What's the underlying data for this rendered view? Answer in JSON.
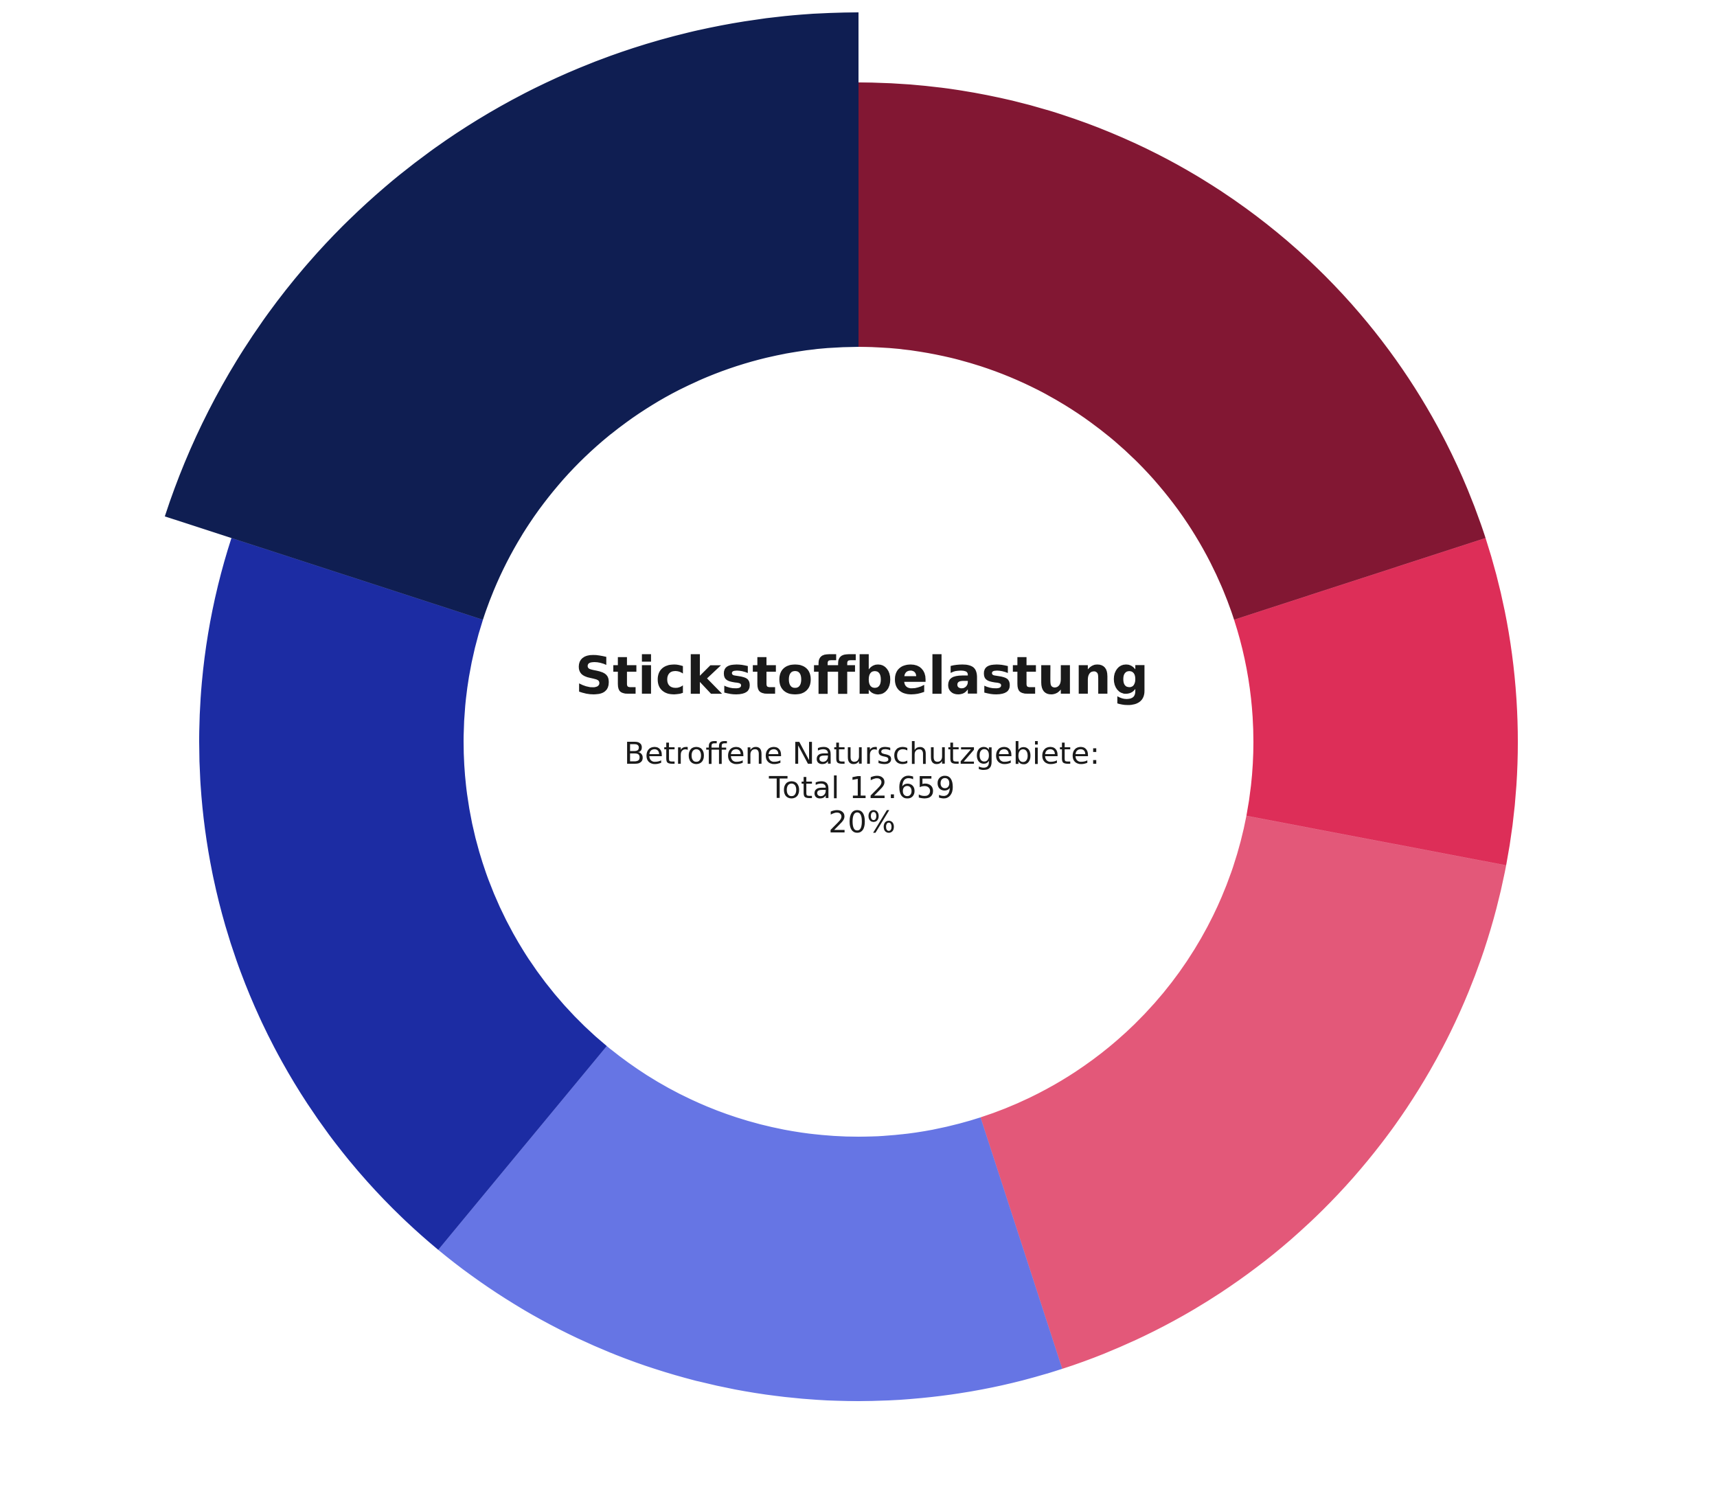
{
  "chart_data": {
    "type": "pie",
    "variant": "donut",
    "highlighted_index": 5,
    "title": "Stickstoffbelastung",
    "center_lines": [
      "Betroffene Naturschutzgebiete:",
      "Total 12.659",
      "20%"
    ],
    "slices": [
      {
        "value": 20,
        "color": "#821733"
      },
      {
        "value": 8,
        "color": "#DD2E58"
      },
      {
        "value": 17,
        "color": "#E35879"
      },
      {
        "value": 16,
        "color": "#6675E4"
      },
      {
        "value": 19,
        "color": "#1C2CA3"
      },
      {
        "value": 20,
        "color": "#0F1E52"
      }
    ],
    "legend": false,
    "grid": false
  }
}
